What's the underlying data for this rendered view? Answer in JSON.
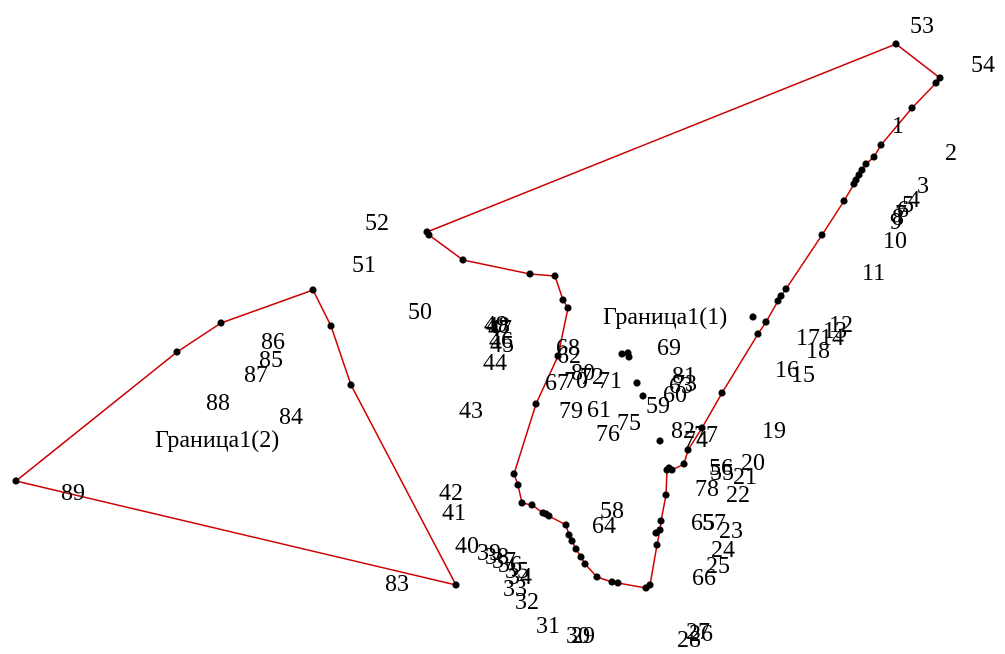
{
  "colors": {
    "boundary": "#cc0000",
    "point": "#000000",
    "text": "#000000",
    "background": "#ffffff"
  },
  "boundaries": [
    {
      "name": "Граница1(1)"
    },
    {
      "name": "Граница1(2)"
    }
  ],
  "point_labels": [
    "1",
    "2",
    "3",
    "4",
    "5",
    "6",
    "7",
    "8",
    "9",
    "10",
    "11",
    "12",
    "13",
    "14",
    "15",
    "16",
    "17",
    "18",
    "19",
    "20",
    "21",
    "22",
    "23",
    "24",
    "25",
    "26",
    "27",
    "28",
    "29",
    "30",
    "31",
    "32",
    "33",
    "34",
    "35",
    "36",
    "37",
    "38",
    "39",
    "40",
    "41",
    "42",
    "43",
    "44",
    "45",
    "46",
    "47",
    "48",
    "49",
    "50",
    "51",
    "52",
    "53",
    "54",
    "55",
    "56",
    "57",
    "58",
    "59",
    "60",
    "61",
    "62",
    "63",
    "64",
    "65",
    "66",
    "67",
    "68",
    "69",
    "70",
    "71",
    "72",
    "73",
    "74",
    "75",
    "76",
    "77",
    "78",
    "79",
    "80",
    "81",
    "82",
    "83",
    "84",
    "85",
    "86",
    "87",
    "88",
    "89"
  ]
}
